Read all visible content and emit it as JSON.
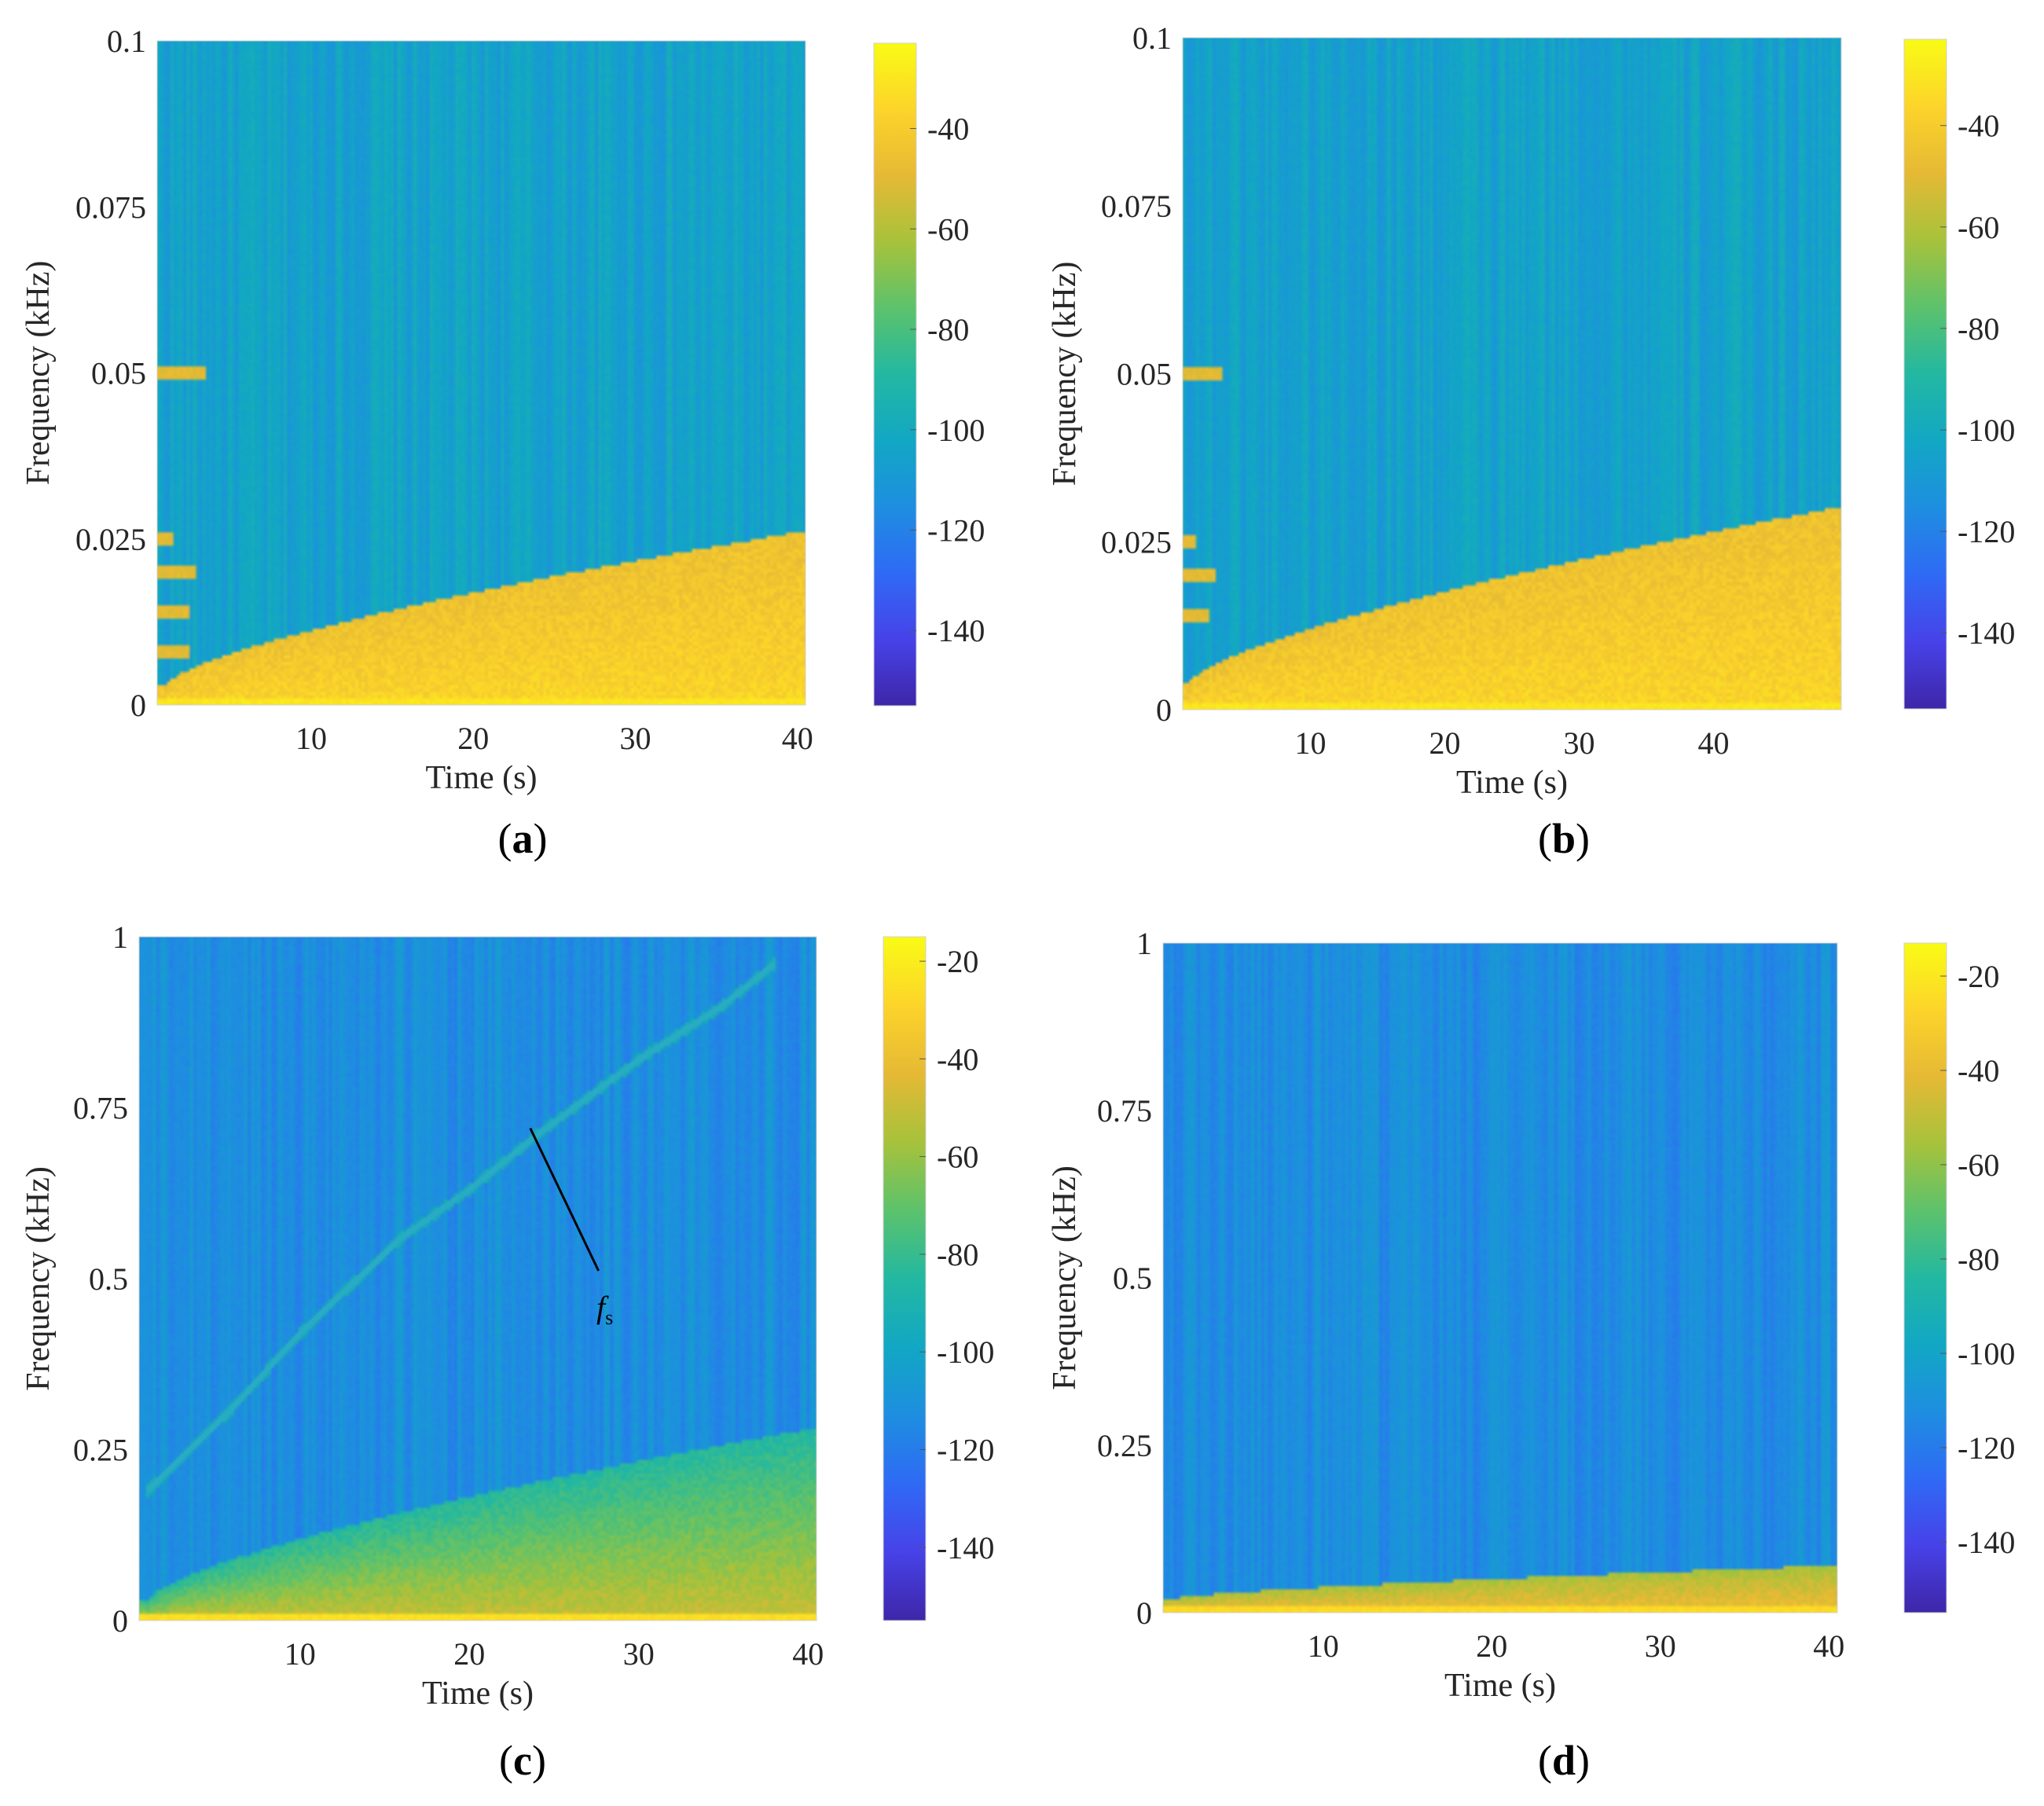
{
  "figure": {
    "colormap": "parula",
    "colormap_stops": [
      "#3e26a8",
      "#4742e8",
      "#2f6af5",
      "#1e8ee0",
      "#12a7c4",
      "#23b8a1",
      "#5cc26c",
      "#a7c23b",
      "#e6b935",
      "#fcd42a",
      "#f9fb15"
    ]
  },
  "chart_data": [
    {
      "type": "heatmap",
      "panel": "a",
      "label_open": "(",
      "label_letter": "a",
      "label_close": ")",
      "xlabel": "Time (s)",
      "ylabel": "Frequency (kHz)",
      "xlim": [
        0.5,
        40.5
      ],
      "ylim": [
        0,
        0.1
      ],
      "xticks": [
        10,
        20,
        30,
        40
      ],
      "xtick_labels": [
        "10",
        "20",
        "30",
        "40"
      ],
      "yticks": [
        0,
        0.025,
        0.05,
        0.075,
        0.1
      ],
      "ytick_labels": [
        "0",
        "0.025",
        "0.05",
        "0.075",
        "0.1"
      ],
      "colorbar": {
        "clim": [
          -155,
          -23
        ],
        "ticks": [
          -40,
          -60,
          -80,
          -100,
          -120,
          -140
        ],
        "tick_labels": [
          "-40",
          "-60",
          "-80",
          "-100",
          "-120",
          "-140"
        ]
      },
      "pattern": {
        "background_db": -105,
        "high_energy_region": {
          "t_start": 1,
          "f_start": 0.003,
          "t_end": 40,
          "f_end": 0.026,
          "level_db": -45
        },
        "low_band_db": -30,
        "early_tone_bands": [
          {
            "f": 0.05,
            "t_end": 3.5
          },
          {
            "f": 0.025,
            "t_end": 1.5
          },
          {
            "f": 0.02,
            "t_end": 3
          },
          {
            "f": 0.014,
            "t_end": 2.5
          },
          {
            "f": 0.008,
            "t_end": 2.5
          }
        ]
      }
    },
    {
      "type": "heatmap",
      "panel": "b",
      "label_open": "(",
      "label_letter": "b",
      "label_close": ")",
      "xlabel": "Time (s)",
      "ylabel": "Frequency (kHz)",
      "xlim": [
        0.5,
        49.5
      ],
      "ylim": [
        0,
        0.1
      ],
      "xticks": [
        10,
        20,
        30,
        40
      ],
      "xtick_labels": [
        "10",
        "20",
        "30",
        "40"
      ],
      "yticks": [
        0,
        0.025,
        0.05,
        0.075,
        0.1
      ],
      "ytick_labels": [
        "0",
        "0.025",
        "0.05",
        "0.075",
        "0.1"
      ],
      "colorbar": {
        "clim": [
          -155,
          -23
        ],
        "ticks": [
          -40,
          -60,
          -80,
          -100,
          -120,
          -140
        ],
        "tick_labels": [
          "-40",
          "-60",
          "-80",
          "-100",
          "-120",
          "-140"
        ]
      },
      "pattern": {
        "background_db": -105,
        "high_energy_region": {
          "t_start": 1,
          "f_start": 0.004,
          "t_end": 49,
          "f_end": 0.03,
          "level_db": -45
        },
        "low_band_db": -30,
        "early_tone_bands": [
          {
            "f": 0.05,
            "t_end": 3.5
          },
          {
            "f": 0.025,
            "t_end": 1.5
          },
          {
            "f": 0.02,
            "t_end": 3
          },
          {
            "f": 0.014,
            "t_end": 2.5
          }
        ]
      }
    },
    {
      "type": "heatmap",
      "panel": "c",
      "label_open": "(",
      "label_letter": "c",
      "label_close": ")",
      "xlabel": "Time (s)",
      "ylabel": "Frequency (kHz)",
      "xlim": [
        0.5,
        40.5
      ],
      "ylim": [
        0,
        1
      ],
      "xticks": [
        10,
        20,
        30,
        40
      ],
      "xtick_labels": [
        "10",
        "20",
        "30",
        "40"
      ],
      "yticks": [
        0,
        0.25,
        0.5,
        0.75,
        1
      ],
      "ytick_labels": [
        "0",
        "0.25",
        "0.5",
        "0.75",
        "1"
      ],
      "colorbar": {
        "clim": [
          -155,
          -15
        ],
        "ticks": [
          -20,
          -40,
          -60,
          -80,
          -100,
          -120,
          -140
        ],
        "tick_labels": [
          "-20",
          "-40",
          "-60",
          "-80",
          "-100",
          "-120",
          "-140"
        ]
      },
      "pattern": {
        "background_db": -112,
        "high_energy_region": {
          "t_start": 1,
          "f_start": 0.03,
          "t_end": 40,
          "f_end": 0.28,
          "level_db": -85
        },
        "low_band_db": -25,
        "sweep_line": [
          [
            1,
            0.19
          ],
          [
            6,
            0.31
          ],
          [
            10,
            0.42
          ],
          [
            16,
            0.56
          ],
          [
            20,
            0.63
          ],
          [
            24,
            0.71
          ],
          [
            30,
            0.82
          ],
          [
            35,
            0.9
          ],
          [
            38,
            0.96
          ]
        ]
      },
      "annotation": {
        "text": "f",
        "subscript": "s",
        "arrow_from": [
          28,
          0.5
        ],
        "arrow_to": [
          23.6,
          0.72
        ]
      }
    },
    {
      "type": "heatmap",
      "panel": "d",
      "label_open": "(",
      "label_letter": "d",
      "label_close": ")",
      "xlabel": "Time (s)",
      "ylabel": "Frequency (kHz)",
      "xlim": [
        0.5,
        40.5
      ],
      "ylim": [
        0,
        1
      ],
      "xticks": [
        10,
        20,
        30,
        40
      ],
      "xtick_labels": [
        "10",
        "20",
        "30",
        "40"
      ],
      "yticks": [
        0,
        0.25,
        0.5,
        0.75,
        1
      ],
      "ytick_labels": [
        "0",
        "0.25",
        "0.5",
        "0.75",
        "1"
      ],
      "colorbar": {
        "clim": [
          -155,
          -13
        ],
        "ticks": [
          -20,
          -40,
          -60,
          -80,
          -100,
          -120,
          -140
        ],
        "tick_labels": [
          "-20",
          "-40",
          "-60",
          "-80",
          "-100",
          "-120",
          "-140"
        ]
      },
      "pattern": {
        "background_db": -112,
        "high_energy_region": {
          "t_start": 1,
          "f_start": 0.02,
          "t_end": 40,
          "f_end": 0.07,
          "level_db": -55
        },
        "low_band_db": -25
      }
    }
  ]
}
